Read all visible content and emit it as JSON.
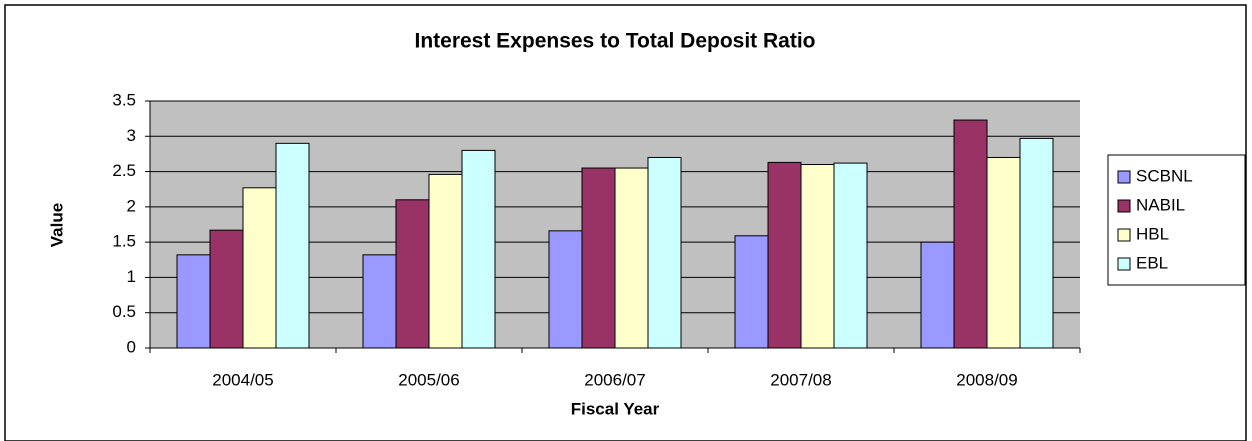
{
  "chart_data": {
    "type": "bar",
    "title": "Interest Expenses to Total Deposit Ratio",
    "x_label": "Fiscal Year",
    "y_label": "Value",
    "categories": [
      "2004/05",
      "2005/06",
      "2006/07",
      "2007/08",
      "2008/09"
    ],
    "series": [
      {
        "name": "SCBNL",
        "color": "#9999ff",
        "values": [
          1.32,
          1.32,
          1.66,
          1.59,
          1.5
        ]
      },
      {
        "name": "NABIL",
        "color": "#993366",
        "values": [
          1.67,
          2.1,
          2.55,
          2.63,
          3.23
        ]
      },
      {
        "name": "HBL",
        "color": "#ffffcc",
        "values": [
          2.27,
          2.46,
          2.55,
          2.6,
          2.7
        ]
      },
      {
        "name": "EBL",
        "color": "#ccffff",
        "values": [
          2.9,
          2.8,
          2.7,
          2.62,
          2.97
        ]
      }
    ],
    "ylim": [
      0,
      3.5
    ],
    "yticks": [
      0,
      0.5,
      1,
      1.5,
      2,
      2.5,
      3,
      3.5
    ],
    "grid": true,
    "legend": "right"
  }
}
